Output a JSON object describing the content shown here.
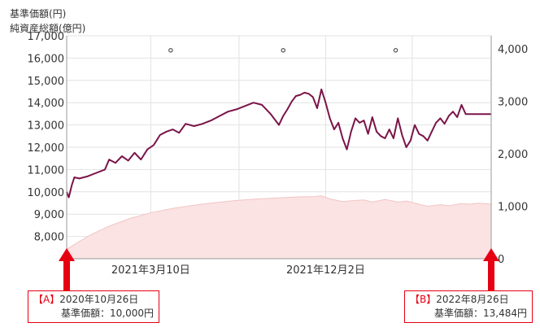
{
  "chart_data": {
    "type": "line",
    "left_axis_title": [
      "基準価額(円)",
      "純資産総額(億円)"
    ],
    "y_ticks": [
      "17,000",
      "16,000",
      "15,000",
      "14,000",
      "13,000",
      "12,000",
      "11,000",
      "10,000",
      "9,000",
      "8,000"
    ],
    "y_tick_values": [
      17000,
      16000,
      15000,
      14000,
      13000,
      12000,
      11000,
      10000,
      9000,
      8000
    ],
    "ylim": [
      7000,
      17000
    ],
    "y2_ticks": [
      "4,000",
      "3,000",
      "2,000",
      "1,000",
      "0"
    ],
    "y2_tick_values": [
      4000,
      3000,
      2000,
      1000,
      0
    ],
    "y2lim": [
      0,
      4250
    ],
    "x_ticks": [
      "2021年3月10日",
      "2021年12月2日"
    ],
    "x_tick_positions": [
      0.198,
      0.61
    ],
    "grid": true,
    "series": [
      {
        "role": "nav",
        "x": [
          0.0,
          0.005,
          0.012,
          0.018,
          0.03,
          0.05,
          0.07,
          0.09,
          0.1,
          0.115,
          0.13,
          0.145,
          0.16,
          0.175,
          0.19,
          0.205,
          0.22,
          0.235,
          0.25,
          0.265,
          0.28,
          0.3,
          0.32,
          0.34,
          0.36,
          0.38,
          0.4,
          0.42,
          0.44,
          0.46,
          0.48,
          0.5,
          0.51,
          0.52,
          0.53,
          0.54,
          0.55,
          0.56,
          0.57,
          0.58,
          0.59,
          0.6,
          0.61,
          0.62,
          0.63,
          0.64,
          0.65,
          0.66,
          0.67,
          0.68,
          0.69,
          0.7,
          0.71,
          0.72,
          0.73,
          0.74,
          0.75,
          0.76,
          0.77,
          0.78,
          0.79,
          0.8,
          0.81,
          0.82,
          0.83,
          0.84,
          0.85,
          0.86,
          0.87,
          0.88,
          0.89,
          0.9,
          0.91,
          0.92,
          0.93,
          0.94,
          0.95,
          0.96,
          0.97,
          0.98,
          0.99,
          1.0
        ],
        "values": [
          10000,
          9750,
          10300,
          10650,
          10600,
          10700,
          10850,
          11000,
          11450,
          11300,
          11600,
          11400,
          11750,
          11450,
          11900,
          12100,
          12550,
          12700,
          12800,
          12650,
          13050,
          12950,
          13050,
          13200,
          13400,
          13600,
          13700,
          13850,
          14000,
          13900,
          13500,
          13000,
          13400,
          13700,
          14050,
          14300,
          14350,
          14450,
          14400,
          14250,
          13750,
          14600,
          14000,
          13300,
          12800,
          13100,
          12400,
          11900,
          12700,
          13300,
          13100,
          13200,
          12600,
          13350,
          12700,
          12500,
          12400,
          12800,
          12400,
          13300,
          12550,
          12000,
          12300,
          13000,
          12600,
          12500,
          12300,
          12700,
          13100,
          13300,
          13050,
          13400,
          13600,
          13350,
          13900,
          13484,
          13484,
          13484,
          13484,
          13484,
          13484,
          13484
        ]
      },
      {
        "role": "aum",
        "x": [
          0.0,
          0.03,
          0.06,
          0.1,
          0.15,
          0.2,
          0.25,
          0.3,
          0.35,
          0.4,
          0.45,
          0.5,
          0.55,
          0.58,
          0.6,
          0.62,
          0.65,
          0.68,
          0.7,
          0.72,
          0.75,
          0.78,
          0.8,
          0.83,
          0.85,
          0.88,
          0.9,
          0.93,
          0.95,
          0.97,
          1.0
        ],
        "values": [
          180,
          330,
          470,
          620,
          770,
          880,
          960,
          1020,
          1070,
          1110,
          1140,
          1160,
          1180,
          1180,
          1200,
          1140,
          1090,
          1110,
          1120,
          1080,
          1130,
          1080,
          1100,
          1040,
          1000,
          1030,
          1010,
          1050,
          1040,
          1060,
          1040
        ]
      }
    ],
    "markers": [
      0.245,
      0.51,
      0.775
    ],
    "marker_value": 16350,
    "colors": {
      "line": "#7a1448",
      "area_fill": "#fbe3e3",
      "area_stroke": "#f2c4c4",
      "grid": "#e2e2e2",
      "arrow": "#e60012"
    }
  },
  "callouts": {
    "a": {
      "tag": "【A】",
      "date": "2020年10月26日",
      "price": "基準価額：10,000円"
    },
    "b": {
      "tag": "【B】",
      "date": "2022年8月26日",
      "price": "基準価額：13,484円"
    }
  }
}
